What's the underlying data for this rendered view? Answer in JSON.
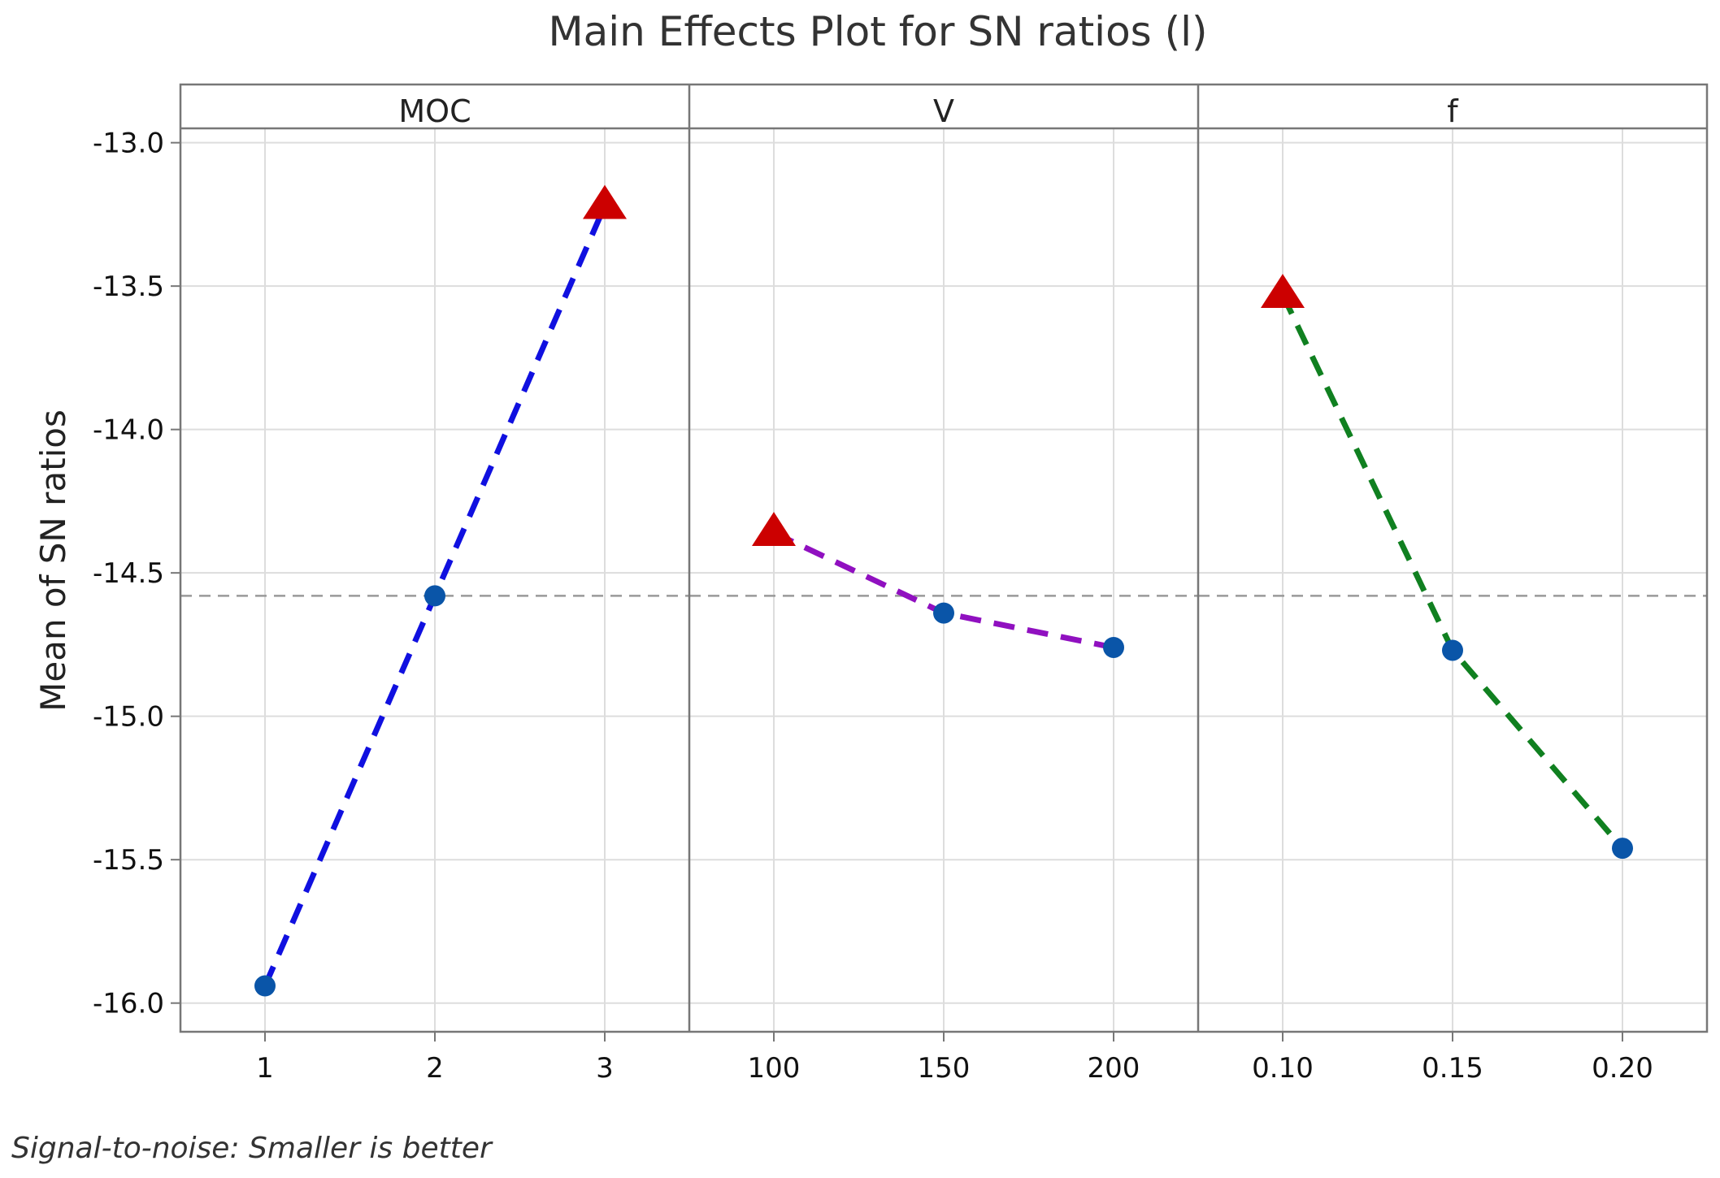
{
  "chart_data": {
    "type": "line",
    "title": "Main Effects Plot for SN ratios (l)",
    "ylabel": "Mean of SN ratios",
    "ylim": [
      -16.1,
      -12.95
    ],
    "yticks": [
      -13.0,
      -13.5,
      -14.0,
      -14.5,
      -15.0,
      -15.5,
      -16.0
    ],
    "ytick_labels": [
      "-13.0",
      "-13.5",
      "-14.0",
      "-14.5",
      "-15.0",
      "-15.5",
      "-16.0"
    ],
    "reference_line": -14.58,
    "footnote": "Signal-to-noise: Smaller is better",
    "grid": true,
    "panels": [
      {
        "name": "MOC",
        "categories": [
          "1",
          "2",
          "3"
        ],
        "values": [
          -15.94,
          -14.58,
          -13.22
        ],
        "best_index": 2,
        "color": "#1010e0"
      },
      {
        "name": "V",
        "categories": [
          "100",
          "150",
          "200"
        ],
        "values": [
          -14.36,
          -14.64,
          -14.76
        ],
        "best_index": 0,
        "color": "#9010c0"
      },
      {
        "name": "f",
        "categories": [
          "0.10",
          "0.15",
          "0.20"
        ],
        "values": [
          -13.53,
          -14.77,
          -15.46
        ],
        "best_index": 0,
        "color": "#108020"
      }
    ],
    "colors": {
      "point": "#0a55a8",
      "best_marker": "#cc0000",
      "grid": "#dddddd",
      "frame": "#777777",
      "reference": "#999999"
    }
  }
}
